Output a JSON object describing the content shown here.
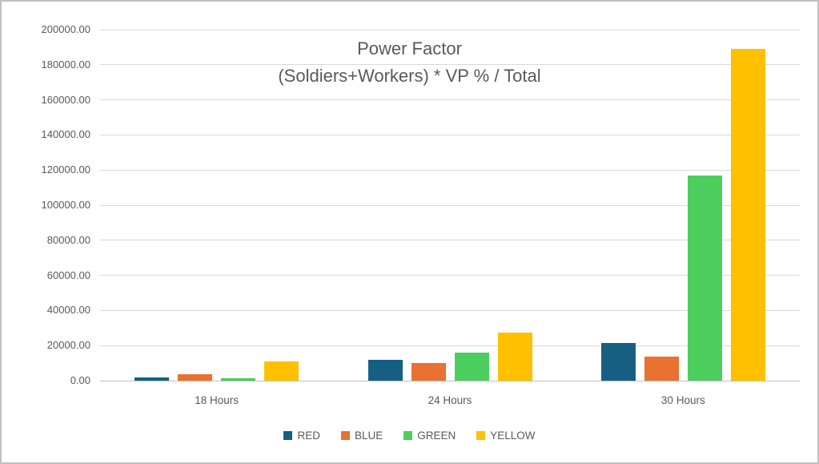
{
  "chart_data": {
    "type": "bar",
    "title": "Power Factor (Soldiers+Workers) * VP % / Total",
    "title_lines": [
      "Power Factor",
      "(Soldiers+Workers) * VP % / Total"
    ],
    "categories": [
      "18 Hours",
      "24 Hours",
      "30 Hours"
    ],
    "series": [
      {
        "name": "RED",
        "color": "#156082",
        "values": [
          2000,
          12000,
          21500
        ]
      },
      {
        "name": "BLUE",
        "color": "#E97132",
        "values": [
          3800,
          10000,
          13500
        ]
      },
      {
        "name": "GREEN",
        "color": "#4CCE5E",
        "values": [
          1500,
          16000,
          117000
        ]
      },
      {
        "name": "YELLOW",
        "color": "#FFC000",
        "values": [
          11000,
          27500,
          189000
        ]
      }
    ],
    "xlabel": "",
    "ylabel": "",
    "ylim": [
      0,
      200000
    ],
    "ytick_step": 20000,
    "ytick_labels": [
      "0.00",
      "20000.00",
      "40000.00",
      "60000.00",
      "80000.00",
      "100000.00",
      "120000.00",
      "140000.00",
      "160000.00",
      "180000.00",
      "200000.00"
    ],
    "grid": true,
    "legend_position": "bottom",
    "colors": {
      "text": "#595959",
      "gridline": "#D9D9D9",
      "axis_line": "#BFBFBF",
      "background": "#FFFFFF",
      "border": "#BFBFBF"
    }
  }
}
